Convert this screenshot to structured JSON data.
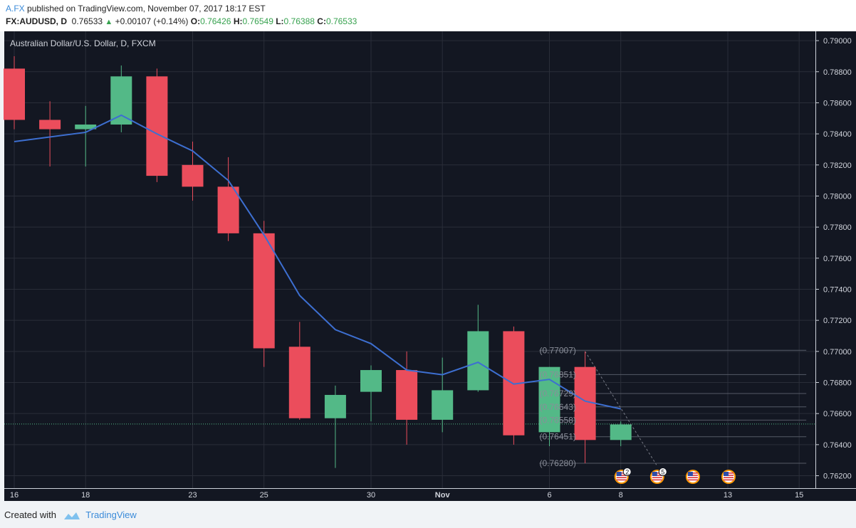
{
  "header": {
    "publisher": "A.FX",
    "published_text": "published on TradingView.com, November 07, 2017 18:17 EST",
    "symbol": "FX:AUDUSD, D",
    "last": "0.76533",
    "change": "+0.00107 (+0.14%)",
    "o_label": "O:",
    "o_value": "0.76426",
    "h_label": "H:",
    "h_value": "0.76549",
    "l_label": "L:",
    "l_value": "0.76388",
    "c_label": "C:",
    "c_value": "0.76533"
  },
  "footer": {
    "created_with": "Created with",
    "brand": "TradingView"
  },
  "colors": {
    "background": "#131722",
    "up": "#53b987",
    "down": "#eb4d5c",
    "ma": "#3d6fd1",
    "grid": "#2a2e39"
  },
  "chart_data": {
    "type": "candlestick",
    "title": "Australian Dollar/U.S. Dollar, D, FXCM",
    "ylim": [
      0.7612,
      0.7906
    ],
    "y_ticks": [
      "0.79000",
      "0.78800",
      "0.78600",
      "0.78400",
      "0.78200",
      "0.78000",
      "0.77800",
      "0.77600",
      "0.77400",
      "0.77200",
      "0.77000",
      "0.76800",
      "0.76600",
      "0.76400",
      "0.76200"
    ],
    "x_labels": [
      {
        "index": 0,
        "label": "16"
      },
      {
        "index": 2,
        "label": "18"
      },
      {
        "index": 5,
        "label": "23"
      },
      {
        "index": 7,
        "label": "25"
      },
      {
        "index": 10,
        "label": "30"
      },
      {
        "index": 12,
        "label": "Nov"
      },
      {
        "index": 15,
        "label": "6"
      },
      {
        "index": 17,
        "label": "8"
      },
      {
        "index": 20,
        "label": "13"
      },
      {
        "index": 22,
        "label": "15"
      }
    ],
    "candles": [
      {
        "i": 0,
        "o": 0.7882,
        "h": 0.789,
        "l": 0.7843,
        "c": 0.7849
      },
      {
        "i": 1,
        "o": 0.7849,
        "h": 0.7861,
        "l": 0.7819,
        "c": 0.7843
      },
      {
        "i": 2,
        "o": 0.7843,
        "h": 0.7858,
        "l": 0.7819,
        "c": 0.7846
      },
      {
        "i": 3,
        "o": 0.7846,
        "h": 0.7884,
        "l": 0.7841,
        "c": 0.7877
      },
      {
        "i": 4,
        "o": 0.7877,
        "h": 0.7882,
        "l": 0.7809,
        "c": 0.7813
      },
      {
        "i": 5,
        "o": 0.782,
        "h": 0.7835,
        "l": 0.7797,
        "c": 0.7806
      },
      {
        "i": 6,
        "o": 0.7806,
        "h": 0.7825,
        "l": 0.7771,
        "c": 0.7776
      },
      {
        "i": 7,
        "o": 0.7776,
        "h": 0.7784,
        "l": 0.769,
        "c": 0.7702
      },
      {
        "i": 8,
        "o": 0.7703,
        "h": 0.7719,
        "l": 0.7656,
        "c": 0.7657
      },
      {
        "i": 9,
        "o": 0.7657,
        "h": 0.7678,
        "l": 0.7625,
        "c": 0.7672
      },
      {
        "i": 10,
        "o": 0.7674,
        "h": 0.7691,
        "l": 0.7655,
        "c": 0.7688
      },
      {
        "i": 11,
        "o": 0.7688,
        "h": 0.77,
        "l": 0.764,
        "c": 0.7656
      },
      {
        "i": 12,
        "o": 0.7656,
        "h": 0.7696,
        "l": 0.7648,
        "c": 0.7675
      },
      {
        "i": 13,
        "o": 0.7675,
        "h": 0.773,
        "l": 0.7674,
        "c": 0.7713
      },
      {
        "i": 14,
        "o": 0.7713,
        "h": 0.7716,
        "l": 0.764,
        "c": 0.7646
      },
      {
        "i": 15,
        "o": 0.7648,
        "h": 0.769,
        "l": 0.7639,
        "c": 0.769
      },
      {
        "i": 16,
        "o": 0.769,
        "h": 0.77,
        "l": 0.7628,
        "c": 0.7643
      },
      {
        "i": 17,
        "o": 0.7643,
        "h": 0.7655,
        "l": 0.7639,
        "c": 0.7653
      }
    ],
    "moving_average": [
      {
        "i": 0,
        "v": 0.7835
      },
      {
        "i": 2,
        "v": 0.7841
      },
      {
        "i": 3,
        "v": 0.7852
      },
      {
        "i": 4,
        "v": 0.784
      },
      {
        "i": 5,
        "v": 0.7829
      },
      {
        "i": 6,
        "v": 0.781
      },
      {
        "i": 7,
        "v": 0.7775
      },
      {
        "i": 8,
        "v": 0.7736
      },
      {
        "i": 9,
        "v": 0.7714
      },
      {
        "i": 10,
        "v": 0.7705
      },
      {
        "i": 11,
        "v": 0.7688
      },
      {
        "i": 12,
        "v": 0.7685
      },
      {
        "i": 13,
        "v": 0.7693
      },
      {
        "i": 14,
        "v": 0.7679
      },
      {
        "i": 15,
        "v": 0.7682
      },
      {
        "i": 16,
        "v": 0.7668
      },
      {
        "i": 17,
        "v": 0.7663
      }
    ],
    "current_price": 0.76533,
    "fibonacci": {
      "from_index": 15,
      "to_index": 22,
      "levels": [
        {
          "value": 0.77007,
          "label": "(0.77007)"
        },
        {
          "value": 0.76851,
          "label": "(0.76851)"
        },
        {
          "value": 0.76729,
          "label": "(0.76729)"
        },
        {
          "value": 0.76643,
          "label": "(0.76643)"
        },
        {
          "value": 0.76558,
          "label": "(0.76558)"
        },
        {
          "value": 0.76451,
          "label": "(0.76451)"
        },
        {
          "value": 0.7628,
          "label": "(0.76280)"
        }
      ],
      "trend_from": {
        "i": 16,
        "v": 0.77
      },
      "trend_to": {
        "i": 18,
        "v": 0.7627
      }
    },
    "events": [
      {
        "i": 17,
        "count": "2"
      },
      {
        "i": 18,
        "count": "5"
      },
      {
        "i": 19,
        "count": ""
      },
      {
        "i": 20,
        "count": ""
      }
    ]
  }
}
